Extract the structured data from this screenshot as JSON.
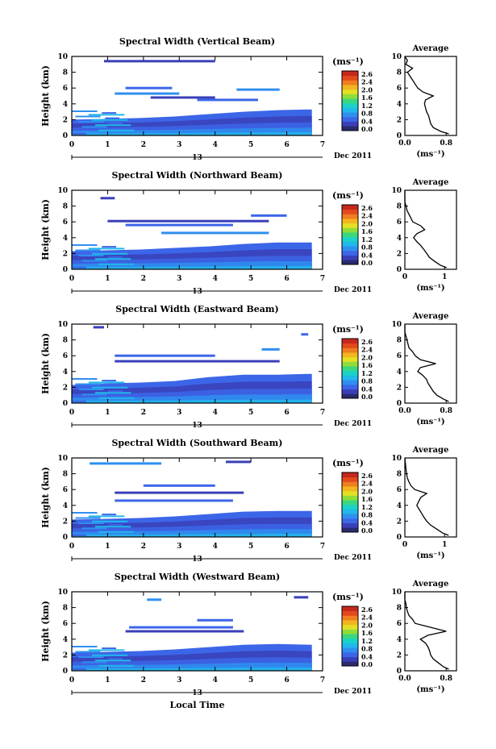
{
  "x_axis_label": "Local Time",
  "date_label": "Dec 2011",
  "date_day": "13",
  "units_label": "(ms⁻¹)",
  "colorbar": {
    "ticks": [
      "2.6",
      "2.4",
      "2.0",
      "1.6",
      "1.2",
      "0.8",
      "0.4",
      "0.0"
    ],
    "colors": [
      "#2a2a6e",
      "#3a3fb8",
      "#3c66e8",
      "#2f8ff0",
      "#21b8ea",
      "#1ad2c8",
      "#39d77f",
      "#8fdc3a",
      "#e3e024",
      "#f2b51e",
      "#f07d1f",
      "#e24a1c",
      "#c6281c"
    ]
  },
  "chart_data": [
    {
      "type": "heatmap",
      "title": "Spectral Width (Vertical Beam)",
      "ylabel": "Height (km)",
      "xlabel": "Local Time",
      "x_ticks": [
        "0",
        "1",
        "2",
        "3",
        "4",
        "5",
        "6",
        "7"
      ],
      "y_ticks": [
        "0",
        "2",
        "4",
        "6",
        "8",
        "10"
      ],
      "xlim": [
        0,
        7
      ],
      "ylim": [
        0,
        10
      ],
      "boundary_layer_top_km": [
        2.0,
        2.1,
        2.2,
        2.4,
        2.7,
        3.0,
        3.2,
        3.3
      ],
      "cloud_layers": [
        {
          "x": [
            0.9,
            4.0
          ],
          "y": 9.4
        },
        {
          "x": [
            1.5,
            2.8
          ],
          "y": 6.0
        },
        {
          "x": [
            1.2,
            3.0
          ],
          "y": 5.3
        },
        {
          "x": [
            2.2,
            4.0
          ],
          "y": 4.8
        },
        {
          "x": [
            3.5,
            5.2
          ],
          "y": 4.5
        },
        {
          "x": [
            4.6,
            5.8
          ],
          "y": 5.8
        }
      ],
      "average": {
        "title": "Average",
        "xlabel": "(ms⁻¹)",
        "x_ticks": [
          "0.0",
          "0.8"
        ],
        "xlim": [
          0,
          1.0
        ],
        "ylim": [
          0,
          10
        ],
        "height_km": [
          0.2,
          0.5,
          1.0,
          1.5,
          2.0,
          2.5,
          3.0,
          3.5,
          4.0,
          4.5,
          5.0,
          5.5,
          6.0,
          6.5,
          7.0,
          7.5,
          8.0,
          8.5,
          9.0,
          9.5,
          10.0
        ],
        "width": [
          0.85,
          0.7,
          0.55,
          0.5,
          0.48,
          0.46,
          0.42,
          0.4,
          0.38,
          0.4,
          0.55,
          0.35,
          0.25,
          0.2,
          0.15,
          0.1,
          0.05,
          0.15,
          0.02,
          0.05,
          0.0
        ]
      }
    },
    {
      "type": "heatmap",
      "title": "Spectral Width (Northward Beam)",
      "ylabel": "Height (km)",
      "xlabel": "Local Time",
      "x_ticks": [
        "0",
        "1",
        "2",
        "3",
        "4",
        "5",
        "6",
        "7"
      ],
      "y_ticks": [
        "0",
        "2",
        "4",
        "6",
        "8",
        "10"
      ],
      "xlim": [
        0,
        7
      ],
      "ylim": [
        0,
        10
      ],
      "boundary_layer_top_km": [
        2.3,
        2.4,
        2.5,
        2.7,
        2.9,
        3.2,
        3.4,
        3.4
      ],
      "cloud_layers": [
        {
          "x": [
            1.0,
            5.5
          ],
          "y": 6.1
        },
        {
          "x": [
            1.5,
            4.5
          ],
          "y": 5.6
        },
        {
          "x": [
            2.5,
            5.5
          ],
          "y": 4.6
        },
        {
          "x": [
            0.8,
            1.2
          ],
          "y": 9.0
        },
        {
          "x": [
            5.0,
            6.0
          ],
          "y": 6.8
        }
      ],
      "average": {
        "title": "Average",
        "xlabel": "(ms⁻¹)",
        "x_ticks": [
          "0",
          "1"
        ],
        "xlim": [
          0,
          1.3
        ],
        "ylim": [
          0,
          10
        ],
        "height_km": [
          0.2,
          0.5,
          1.0,
          1.5,
          2.0,
          2.5,
          3.0,
          3.5,
          4.0,
          4.5,
          5.0,
          5.5,
          6.0,
          6.5,
          7.0,
          7.5,
          8.0,
          8.5,
          9.0,
          9.5,
          10.0
        ],
        "width": [
          1.05,
          0.9,
          0.75,
          0.62,
          0.55,
          0.48,
          0.4,
          0.3,
          0.22,
          0.3,
          0.5,
          0.4,
          0.2,
          0.15,
          0.1,
          0.05,
          0.03,
          0.0,
          0.0,
          0.0,
          0.0
        ]
      }
    },
    {
      "type": "heatmap",
      "title": "Spectral Width (Eastward Beam)",
      "ylabel": "Height (km)",
      "xlabel": "Local Time",
      "x_ticks": [
        "0",
        "1",
        "2",
        "3",
        "4",
        "5",
        "6",
        "7"
      ],
      "y_ticks": [
        "0",
        "2",
        "4",
        "6",
        "8",
        "10"
      ],
      "xlim": [
        0,
        7
      ],
      "ylim": [
        0,
        10
      ],
      "boundary_layer_top_km": [
        2.3,
        2.5,
        2.6,
        2.8,
        3.3,
        3.6,
        3.6,
        3.7
      ],
      "cloud_layers": [
        {
          "x": [
            1.2,
            5.8
          ],
          "y": 5.3
        },
        {
          "x": [
            1.2,
            4.0
          ],
          "y": 6.0
        },
        {
          "x": [
            5.3,
            5.8
          ],
          "y": 6.8
        },
        {
          "x": [
            0.6,
            0.9
          ],
          "y": 9.6
        },
        {
          "x": [
            6.4,
            6.6
          ],
          "y": 8.7
        }
      ],
      "average": {
        "title": "Average",
        "xlabel": "(ms⁻¹)",
        "x_ticks": [
          "0.0",
          "0.8"
        ],
        "xlim": [
          0,
          1.0
        ],
        "ylim": [
          0,
          10
        ],
        "height_km": [
          0.2,
          0.5,
          1.0,
          1.5,
          2.0,
          2.5,
          3.0,
          3.5,
          4.0,
          4.5,
          5.0,
          5.5,
          6.0,
          6.5,
          7.0,
          7.5,
          8.0,
          8.5,
          9.0,
          9.5,
          10.0
        ],
        "width": [
          0.85,
          0.75,
          0.62,
          0.55,
          0.5,
          0.45,
          0.42,
          0.35,
          0.25,
          0.3,
          0.6,
          0.3,
          0.2,
          0.15,
          0.08,
          0.06,
          0.04,
          0.02,
          0.0,
          0.0,
          0.0
        ]
      }
    },
    {
      "type": "heatmap",
      "title": "Spectral Width (Southward Beam)",
      "ylabel": "Height (km)",
      "xlabel": "Local Time",
      "x_ticks": [
        "0",
        "1",
        "2",
        "3",
        "4",
        "5",
        "6",
        "7"
      ],
      "y_ticks": [
        "0",
        "2",
        "4",
        "6",
        "8",
        "10"
      ],
      "xlim": [
        0,
        7
      ],
      "ylim": [
        0,
        10
      ],
      "boundary_layer_top_km": [
        2.2,
        2.3,
        2.4,
        2.6,
        2.9,
        3.2,
        3.3,
        3.3
      ],
      "cloud_layers": [
        {
          "x": [
            1.2,
            4.8
          ],
          "y": 5.6
        },
        {
          "x": [
            1.2,
            4.5
          ],
          "y": 4.6
        },
        {
          "x": [
            0.5,
            2.5
          ],
          "y": 9.3
        },
        {
          "x": [
            4.3,
            5.0
          ],
          "y": 9.5
        },
        {
          "x": [
            2.0,
            4.0
          ],
          "y": 6.5
        }
      ],
      "average": {
        "title": "Average",
        "xlabel": "(ms⁻¹)",
        "x_ticks": [
          "0",
          "1"
        ],
        "xlim": [
          0,
          1.3
        ],
        "ylim": [
          0,
          10
        ],
        "height_km": [
          0.2,
          0.5,
          1.0,
          1.5,
          2.0,
          2.5,
          3.0,
          3.5,
          4.0,
          4.5,
          5.0,
          5.5,
          6.0,
          6.5,
          7.0,
          7.5,
          8.0,
          8.5,
          9.0,
          9.5,
          10.0
        ],
        "width": [
          1.1,
          0.95,
          0.8,
          0.65,
          0.55,
          0.48,
          0.42,
          0.36,
          0.3,
          0.35,
          0.4,
          0.55,
          0.25,
          0.15,
          0.1,
          0.06,
          0.04,
          0.03,
          0.02,
          0.01,
          0.0
        ]
      }
    },
    {
      "type": "heatmap",
      "title": "Spectral Width (Westward Beam)",
      "ylabel": "Height (km)",
      "xlabel": "Local Time",
      "x_ticks": [
        "0",
        "1",
        "2",
        "3",
        "4",
        "5",
        "6",
        "7"
      ],
      "y_ticks": [
        "0",
        "2",
        "4",
        "6",
        "8",
        "10"
      ],
      "xlim": [
        0,
        7
      ],
      "ylim": [
        0,
        10
      ],
      "boundary_layer_top_km": [
        2.3,
        2.4,
        2.5,
        2.7,
        3.0,
        3.3,
        3.4,
        3.3
      ],
      "cloud_layers": [
        {
          "x": [
            1.5,
            4.8
          ],
          "y": 5.0
        },
        {
          "x": [
            1.6,
            4.5
          ],
          "y": 5.5
        },
        {
          "x": [
            2.1,
            2.5
          ],
          "y": 9.0
        },
        {
          "x": [
            6.2,
            6.6
          ],
          "y": 9.3
        },
        {
          "x": [
            3.5,
            4.5
          ],
          "y": 6.4
        }
      ],
      "average": {
        "title": "Average",
        "xlabel": "(ms⁻¹)",
        "x_ticks": [
          "0.0",
          "0.8"
        ],
        "xlim": [
          0,
          1.0
        ],
        "ylim": [
          0,
          10
        ],
        "height_km": [
          0.2,
          0.5,
          1.0,
          1.5,
          2.0,
          2.5,
          3.0,
          3.5,
          4.0,
          4.5,
          5.0,
          5.5,
          6.0,
          6.5,
          7.0,
          7.5,
          8.0,
          8.5,
          9.0,
          9.5,
          10.0
        ],
        "width": [
          0.85,
          0.75,
          0.65,
          0.55,
          0.5,
          0.48,
          0.45,
          0.4,
          0.3,
          0.45,
          0.8,
          0.5,
          0.2,
          0.15,
          0.08,
          0.05,
          0.03,
          0.02,
          0.0,
          0.0,
          0.0
        ]
      }
    }
  ]
}
